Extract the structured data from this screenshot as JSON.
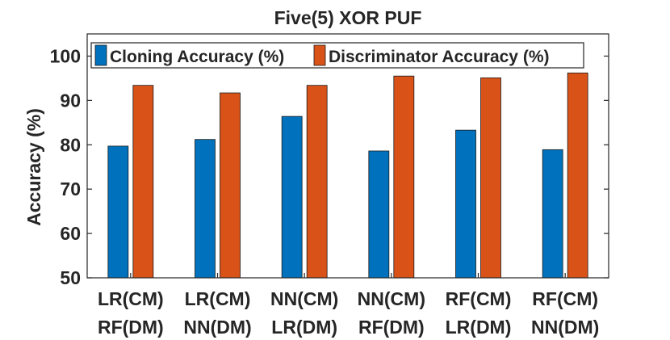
{
  "chart_data": {
    "type": "bar",
    "title": "Five(5) XOR PUF",
    "xlabel": "",
    "ylabel": "Accuracy (%)",
    "ylim": [
      50,
      105
    ],
    "yticks": [
      50,
      60,
      70,
      80,
      90,
      100
    ],
    "grid": false,
    "legend_position": "top",
    "categories": [
      [
        "LR(CM)",
        "RF(DM)"
      ],
      [
        "LR(CM)",
        "NN(DM)"
      ],
      [
        "NN(CM)",
        "LR(DM)"
      ],
      [
        "NN(CM)",
        "RF(DM)"
      ],
      [
        "RF(CM)",
        "LR(DM)"
      ],
      [
        "RF(CM)",
        "NN(DM)"
      ]
    ],
    "series": [
      {
        "name": "Cloning Accuracy (%)",
        "color": "#0072BD",
        "values": [
          79.7,
          81.2,
          86.4,
          78.6,
          83.3,
          78.9
        ]
      },
      {
        "name": "Discriminator Accuracy (%)",
        "color": "#D95319",
        "values": [
          93.4,
          91.7,
          93.4,
          95.5,
          95.1,
          96.2
        ]
      }
    ]
  }
}
